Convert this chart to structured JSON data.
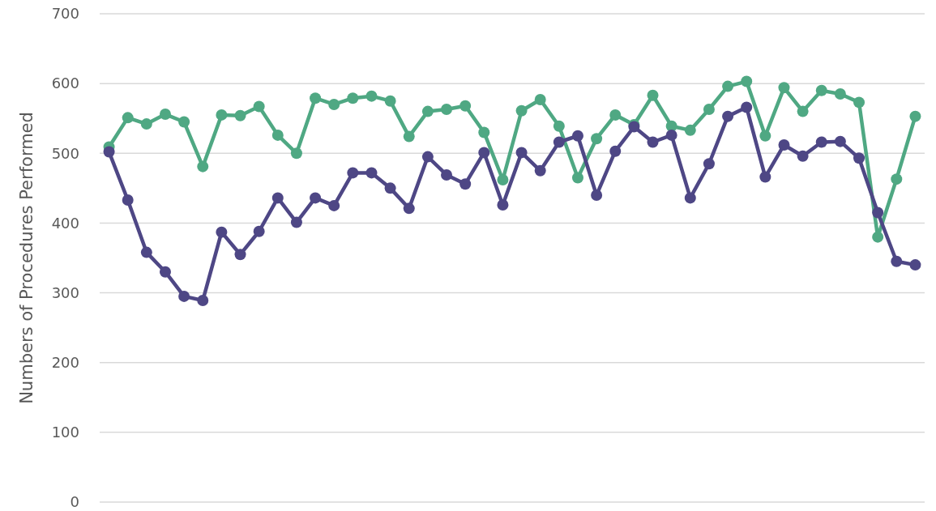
{
  "chart_data": {
    "type": "line",
    "ylabel": "Numbers of Procedures Performed",
    "categories": [
      null,
      null,
      null,
      null,
      null,
      null,
      null,
      null,
      null,
      null,
      null,
      null,
      null,
      null,
      null,
      null,
      null,
      null,
      null,
      null,
      null,
      null,
      null,
      null,
      null,
      null,
      null,
      null,
      null,
      null,
      null,
      null,
      null,
      null,
      null,
      null,
      null,
      null,
      null,
      null,
      null,
      null,
      null,
      null
    ],
    "series": [
      {
        "color": "#4fa883",
        "values": [
          509,
          551,
          542,
          556,
          545,
          481,
          555,
          554,
          567,
          526,
          500,
          579,
          570,
          579,
          582,
          575,
          524,
          560,
          563,
          568,
          530,
          462,
          561,
          577,
          539,
          465,
          521,
          555,
          541,
          583,
          539,
          533,
          563,
          596,
          603,
          525,
          594,
          560,
          590,
          585,
          573,
          380,
          463,
          553
        ]
      },
      {
        "color": "#4e4785",
        "values": [
          502,
          433,
          358,
          330,
          295,
          289,
          387,
          355,
          388,
          436,
          401,
          436,
          425,
          472,
          472,
          450,
          421,
          495,
          469,
          456,
          501,
          426,
          501,
          475,
          516,
          525,
          440,
          503,
          538,
          516,
          526,
          436,
          485,
          553,
          566,
          466,
          512,
          496,
          516,
          517,
          493,
          415,
          345,
          340
        ]
      }
    ],
    "ylim": [
      0,
      700
    ],
    "yticks": [
      0,
      100,
      200,
      300,
      400,
      500,
      600,
      700
    ],
    "grid": "y",
    "marker": "circle",
    "line_style": "solid"
  }
}
